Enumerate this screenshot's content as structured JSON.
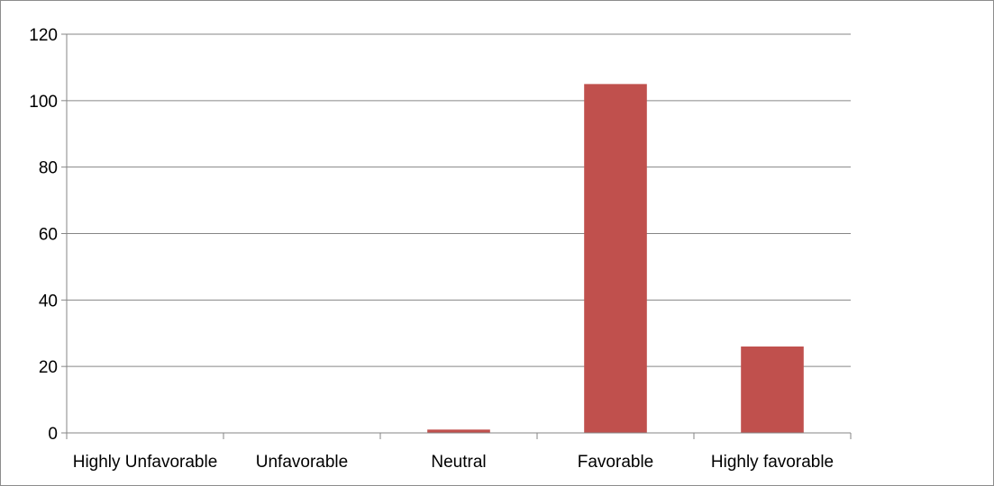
{
  "chart_data": {
    "type": "bar",
    "categories": [
      "Highly Unfavorable",
      "Unfavorable",
      "Neutral",
      "Favorable",
      "Highly favorable"
    ],
    "values": [
      0,
      0,
      1,
      105,
      26
    ],
    "title": "",
    "xlabel": "",
    "ylabel": "",
    "ylim": [
      0,
      120
    ],
    "yticks": [
      0,
      20,
      40,
      60,
      80,
      100,
      120
    ],
    "grid": true,
    "legend": "none",
    "bar_color": "#c0504d",
    "grid_color": "#868686",
    "axis_color": "#868686"
  }
}
